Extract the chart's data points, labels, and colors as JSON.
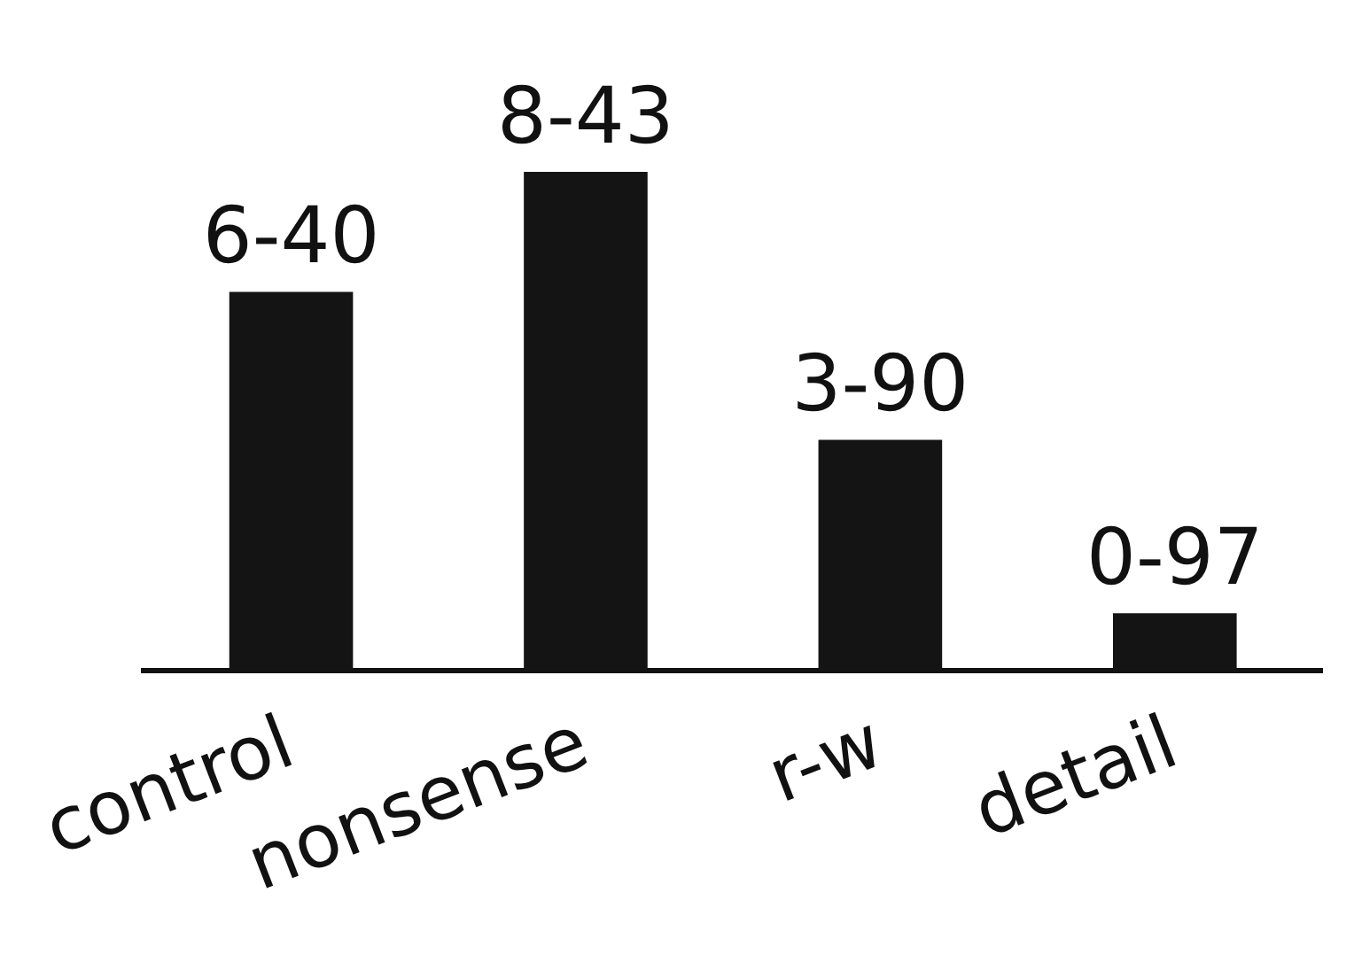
{
  "chart_data": {
    "type": "bar",
    "categories": [
      "control",
      "nonsense",
      "r-w",
      "detail"
    ],
    "values": [
      6.4,
      8.43,
      3.9,
      0.97
    ],
    "value_labels": [
      "6-40",
      "8-43",
      "3-90",
      "0-97"
    ],
    "color": "#141414",
    "grid": false,
    "legend": false
  }
}
